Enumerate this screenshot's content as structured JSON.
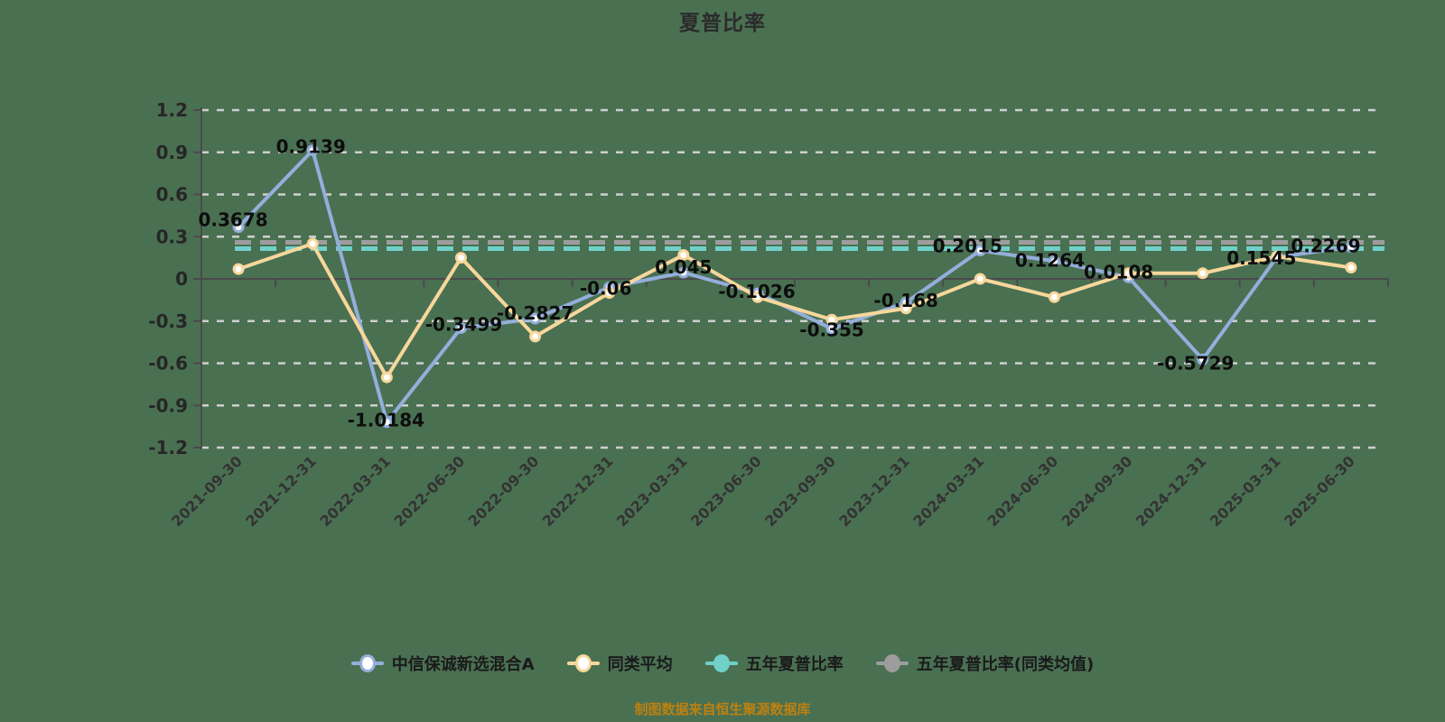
{
  "title": "夏普比率",
  "footer_note": "制图数据来自恒生聚源数据库",
  "colors": {
    "background": "#4A7052",
    "title_text": "#2B2B2B",
    "axis_text": "#262626",
    "date_text": "#333333",
    "data_label_text": "#0D0D0D",
    "grid_line": "#CFCFCF",
    "axis_line": "#4A4A4A",
    "fund": "#94AEDC",
    "peer": "#F7D79B",
    "five_year": "#70D1C9",
    "five_year_peer": "#9D9D9D",
    "marker_fill": "#FFFFFF",
    "legend_text": "#1A1A1A",
    "footer_text": "#BD8111"
  },
  "chart_data": {
    "type": "line",
    "title": "夏普比率",
    "categories": [
      "2021-09-30",
      "2021-12-31",
      "2022-03-31",
      "2022-06-30",
      "2022-09-30",
      "2022-12-31",
      "2023-03-31",
      "2023-06-30",
      "2023-09-30",
      "2023-12-31",
      "2024-03-31",
      "2024-06-30",
      "2024-09-30",
      "2024-12-31",
      "2025-03-31",
      "2025-06-30"
    ],
    "ylim": [
      -1.2,
      1.2
    ],
    "ytick_labels": [
      "1.2",
      "0.9",
      "0.6",
      "0.3",
      "0",
      "-0.3",
      "-0.6",
      "-0.9",
      "-1.2"
    ],
    "grid": "horizontal-dashed",
    "legend_position": "bottom",
    "series": [
      {
        "key": "fund",
        "name": "中信保诚新选混合A",
        "type": "line",
        "values": [
          0.3678,
          0.9139,
          -1.0184,
          -0.3499,
          -0.2827,
          -0.06,
          0.045,
          -0.1026,
          -0.355,
          -0.168,
          0.2015,
          0.1264,
          0.0108,
          -0.5729,
          0.1545,
          0.2269
        ],
        "point_labels": [
          "0.3678",
          "0.9139",
          "-1.0184",
          "-0.3499",
          "-0.2827",
          "-0.06",
          "0.045",
          "-0.1026",
          "-0.355",
          "-0.168",
          "0.2015",
          "0.1264",
          "0.0108",
          "-0.5729",
          "0.1545",
          "0.2269"
        ]
      },
      {
        "key": "peer",
        "name": "同类平均",
        "type": "line",
        "values": [
          0.07,
          0.25,
          -0.7,
          0.15,
          -0.41,
          -0.1,
          0.17,
          -0.13,
          -0.29,
          -0.21,
          0.0,
          -0.13,
          0.04,
          0.04,
          0.16,
          0.08
        ]
      },
      {
        "key": "five_year",
        "name": "五年夏普比率",
        "type": "hline-dashed",
        "value": 0.215
      },
      {
        "key": "five_year_peer",
        "name": "五年夏普比率(同类均值)",
        "type": "hline-dashed",
        "value": 0.26
      }
    ]
  },
  "legend": {
    "items": [
      {
        "key": "fund",
        "label": "中信保诚新选混合A",
        "marker": "hollow-circle"
      },
      {
        "key": "peer",
        "label": "同类平均",
        "marker": "hollow-circle"
      },
      {
        "key": "five_year",
        "label": "五年夏普比率",
        "marker": "solid-circle"
      },
      {
        "key": "five_year_peer",
        "label": "五年夏普比率(同类均值)",
        "marker": "solid-circle"
      }
    ]
  }
}
